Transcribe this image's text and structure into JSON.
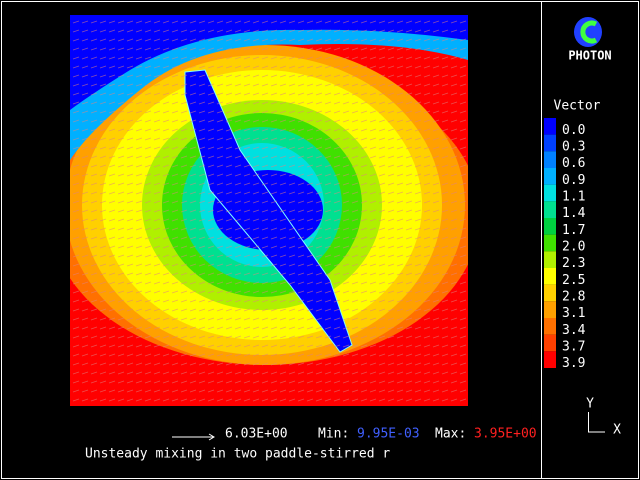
{
  "logo": "PHOTON",
  "legend": {
    "title": "Vector",
    "items": [
      {
        "label": "0.0",
        "color": "#0000ff"
      },
      {
        "label": "0.3",
        "color": "#0040ff"
      },
      {
        "label": "0.6",
        "color": "#0080ff"
      },
      {
        "label": "0.9",
        "color": "#00b0ff"
      },
      {
        "label": "1.1",
        "color": "#00e0e0"
      },
      {
        "label": "1.4",
        "color": "#00e090"
      },
      {
        "label": "1.7",
        "color": "#00d040"
      },
      {
        "label": "2.0",
        "color": "#40e000"
      },
      {
        "label": "2.3",
        "color": "#b0f000"
      },
      {
        "label": "2.5",
        "color": "#ffff00"
      },
      {
        "label": "2.8",
        "color": "#ffd000"
      },
      {
        "label": "3.1",
        "color": "#ffa000"
      },
      {
        "label": "3.4",
        "color": "#ff7000"
      },
      {
        "label": "3.7",
        "color": "#ff4000"
      },
      {
        "label": "3.9",
        "color": "#ff0000"
      }
    ]
  },
  "footer": {
    "reference_vector": "6.03E+00",
    "min_label": "Min:",
    "min_value": "9.95E-03",
    "max_label": "Max:",
    "max_value": "3.95E+00",
    "caption": "Unsteady mixing in two paddle-stirred r"
  },
  "axes": {
    "y": "Y",
    "x": "X"
  }
}
